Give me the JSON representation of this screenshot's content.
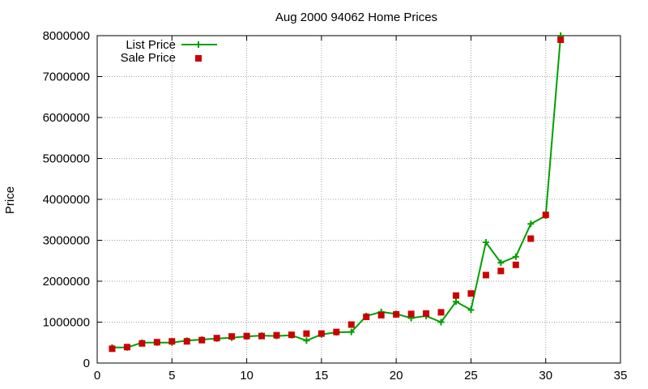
{
  "chart_data": {
    "type": "line",
    "title": "Aug 2000 94062 Home Prices",
    "xlabel": "",
    "ylabel": "Price",
    "xlim": [
      0,
      35
    ],
    "ylim": [
      0,
      8000000
    ],
    "xticks": [
      0,
      5,
      10,
      15,
      20,
      25,
      30,
      35
    ],
    "yticks": [
      0,
      1000000,
      2000000,
      3000000,
      4000000,
      5000000,
      6000000,
      7000000,
      8000000
    ],
    "grid": true,
    "legend_position": "top-left",
    "series": [
      {
        "name": "List Price",
        "style": "line-with-plus-markers",
        "color": "#00a000",
        "x": [
          1,
          2,
          3,
          4,
          5,
          6,
          7,
          8,
          9,
          10,
          11,
          12,
          13,
          14,
          15,
          16,
          17,
          18,
          19,
          20,
          21,
          22,
          23,
          24,
          25,
          26,
          27,
          28,
          29,
          30,
          31
        ],
        "y": [
          380000,
          380000,
          500000,
          500000,
          500000,
          550000,
          575000,
          600000,
          620000,
          650000,
          670000,
          660000,
          680000,
          550000,
          700000,
          750000,
          760000,
          1150000,
          1250000,
          1200000,
          1100000,
          1150000,
          1000000,
          1500000,
          1300000,
          2950000,
          2450000,
          2600000,
          3400000,
          3600000,
          8000000
        ]
      },
      {
        "name": "Sale Price",
        "style": "square-markers",
        "color": "#cc0000",
        "x": [
          1,
          2,
          3,
          4,
          5,
          6,
          7,
          8,
          9,
          10,
          11,
          12,
          13,
          14,
          15,
          16,
          17,
          18,
          19,
          20,
          21,
          22,
          23,
          24,
          25,
          26,
          27,
          28,
          29,
          30,
          31
        ],
        "y": [
          350000,
          390000,
          480000,
          510000,
          530000,
          530000,
          560000,
          610000,
          650000,
          660000,
          660000,
          680000,
          690000,
          720000,
          720000,
          760000,
          940000,
          1130000,
          1170000,
          1190000,
          1200000,
          1210000,
          1240000,
          1650000,
          1700000,
          2150000,
          2250000,
          2400000,
          3040000,
          3620000,
          7900000
        ]
      }
    ]
  }
}
